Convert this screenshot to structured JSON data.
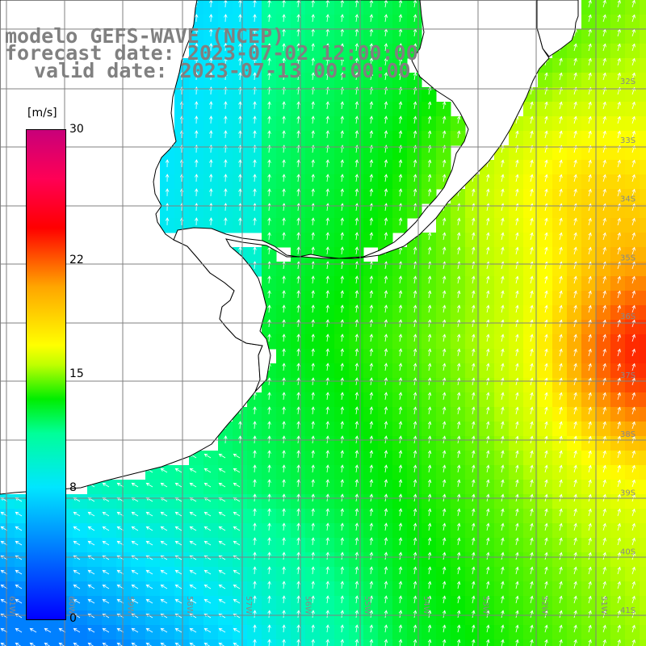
{
  "title": {
    "line1": "modelo GEFS-WAVE (NCEP)",
    "line2": "forecast date: 2023-07-02 12:00:00",
    "line3": "valid date: 2023-07-13 00:00:00"
  },
  "colorbar": {
    "unit": "[m/s]",
    "ticks": [
      {
        "label": "30",
        "value": 30
      },
      {
        "label": "22",
        "value": 22
      },
      {
        "label": "15",
        "value": 15
      },
      {
        "label": "8",
        "value": 8
      },
      {
        "label": "0",
        "value": 0
      }
    ],
    "min": 0,
    "max": 30
  },
  "axes": {
    "lat_labels": [
      "32S",
      "33S",
      "34S",
      "35S",
      "36S",
      "37S",
      "38S",
      "39S",
      "40S",
      "41S"
    ],
    "lon_labels": [
      "61W",
      "60W",
      "59W",
      "58W",
      "57W",
      "56W",
      "55W",
      "54W",
      "53W",
      "52W",
      "51W"
    ]
  },
  "colors": {
    "land": "#ffffff",
    "coast": "#000000",
    "grid": "#808080",
    "arrows": "#ffffff",
    "title": "#808080"
  }
}
